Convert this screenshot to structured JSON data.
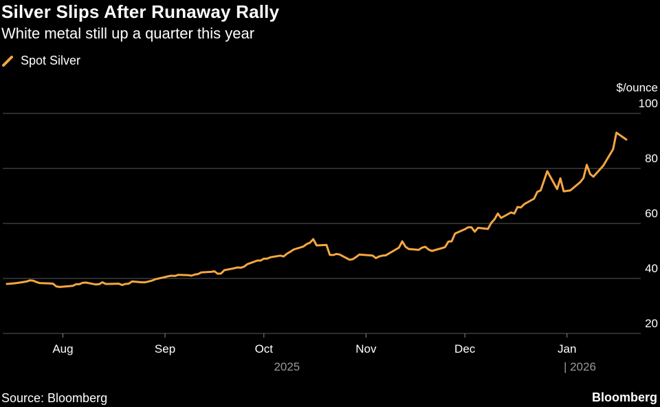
{
  "header": {
    "title": "Silver Slips After Runaway Rally",
    "subtitle": "White metal still up a quarter this year"
  },
  "footer": {
    "source": "Source: Bloomberg",
    "brand": "Bloomberg"
  },
  "colors": {
    "background": "#000000",
    "line": "#f5a742",
    "grid": "#5a5a5a",
    "text": "#ffffff",
    "muted": "#9a9a9a"
  },
  "chart_data": {
    "type": "line",
    "title": "Silver Slips After Runaway Rally",
    "subtitle": "White metal still up a quarter this year",
    "ylabel": "$/ounce",
    "xlabel": "",
    "ylim": [
      20,
      100
    ],
    "yticks": [
      20,
      40,
      60,
      80,
      100
    ],
    "xlim": [
      "2025-07-15",
      "2026-01-23"
    ],
    "xticks": [
      {
        "label": "Aug",
        "date": "2025-08-01"
      },
      {
        "label": "Sep",
        "date": "2025-09-01"
      },
      {
        "label": "Oct",
        "date": "2025-10-01"
      },
      {
        "label": "Nov",
        "date": "2025-11-01"
      },
      {
        "label": "Dec",
        "date": "2025-12-01"
      },
      {
        "label": "Jan",
        "date": "2026-01-01"
      }
    ],
    "year_labels": [
      {
        "label": "2025",
        "date": "2025-10-08"
      },
      {
        "label": "| 2026",
        "date": "2026-01-12"
      }
    ],
    "grid": true,
    "legend": {
      "position": "top-left"
    },
    "series": [
      {
        "name": "Spot Silver",
        "color": "#f5a742",
        "points": [
          [
            "2025-07-15",
            38.0
          ],
          [
            "2025-07-17",
            38.2
          ],
          [
            "2025-07-19",
            38.5
          ],
          [
            "2025-07-21",
            38.9
          ],
          [
            "2025-07-22",
            39.3
          ],
          [
            "2025-07-23",
            39.2
          ],
          [
            "2025-07-24",
            38.7
          ],
          [
            "2025-07-25",
            38.3
          ],
          [
            "2025-07-28",
            38.2
          ],
          [
            "2025-07-29",
            38.1
          ],
          [
            "2025-07-30",
            37.1
          ],
          [
            "2025-07-31",
            36.9
          ],
          [
            "2025-08-01",
            37.0
          ],
          [
            "2025-08-04",
            37.3
          ],
          [
            "2025-08-05",
            37.9
          ],
          [
            "2025-08-06",
            37.9
          ],
          [
            "2025-08-07",
            38.4
          ],
          [
            "2025-08-08",
            38.5
          ],
          [
            "2025-08-11",
            37.8
          ],
          [
            "2025-08-12",
            37.9
          ],
          [
            "2025-08-13",
            38.6
          ],
          [
            "2025-08-14",
            38.0
          ],
          [
            "2025-08-15",
            38.0
          ],
          [
            "2025-08-18",
            38.1
          ],
          [
            "2025-08-19",
            37.6
          ],
          [
            "2025-08-20",
            38.0
          ],
          [
            "2025-08-21",
            38.1
          ],
          [
            "2025-08-22",
            38.9
          ],
          [
            "2025-08-25",
            38.6
          ],
          [
            "2025-08-26",
            38.6
          ],
          [
            "2025-08-27",
            38.9
          ],
          [
            "2025-08-28",
            39.2
          ],
          [
            "2025-08-29",
            39.7
          ],
          [
            "2025-09-01",
            40.5
          ],
          [
            "2025-09-02",
            40.8
          ],
          [
            "2025-09-03",
            41.0
          ],
          [
            "2025-09-04",
            40.9
          ],
          [
            "2025-09-05",
            41.3
          ],
          [
            "2025-09-08",
            41.2
          ],
          [
            "2025-09-09",
            41.0
          ],
          [
            "2025-09-10",
            41.4
          ],
          [
            "2025-09-11",
            41.6
          ],
          [
            "2025-09-12",
            42.2
          ],
          [
            "2025-09-15",
            42.4
          ],
          [
            "2025-09-16",
            42.6
          ],
          [
            "2025-09-17",
            41.7
          ],
          [
            "2025-09-18",
            41.8
          ],
          [
            "2025-09-19",
            43.0
          ],
          [
            "2025-09-22",
            43.7
          ],
          [
            "2025-09-23",
            44.0
          ],
          [
            "2025-09-24",
            43.9
          ],
          [
            "2025-09-25",
            44.3
          ],
          [
            "2025-09-26",
            45.2
          ],
          [
            "2025-09-29",
            46.5
          ],
          [
            "2025-09-30",
            46.5
          ],
          [
            "2025-10-01",
            47.2
          ],
          [
            "2025-10-02",
            47.2
          ],
          [
            "2025-10-03",
            47.7
          ],
          [
            "2025-10-06",
            48.3
          ],
          [
            "2025-10-07",
            48.0
          ],
          [
            "2025-10-08",
            49.0
          ],
          [
            "2025-10-09",
            49.7
          ],
          [
            "2025-10-10",
            50.5
          ],
          [
            "2025-10-13",
            51.6
          ],
          [
            "2025-10-14",
            52.5
          ],
          [
            "2025-10-15",
            53.0
          ],
          [
            "2025-10-16",
            54.3
          ],
          [
            "2025-10-17",
            52.0
          ],
          [
            "2025-10-20",
            52.2
          ],
          [
            "2025-10-21",
            48.6
          ],
          [
            "2025-10-22",
            48.5
          ],
          [
            "2025-10-23",
            48.9
          ],
          [
            "2025-10-24",
            48.7
          ],
          [
            "2025-10-27",
            46.8
          ],
          [
            "2025-10-28",
            47.0
          ],
          [
            "2025-10-29",
            47.8
          ],
          [
            "2025-10-30",
            48.7
          ],
          [
            "2025-11-03",
            48.3
          ],
          [
            "2025-11-04",
            47.4
          ],
          [
            "2025-11-05",
            48.0
          ],
          [
            "2025-11-06",
            48.3
          ],
          [
            "2025-11-07",
            48.4
          ],
          [
            "2025-11-10",
            50.5
          ],
          [
            "2025-11-11",
            51.2
          ],
          [
            "2025-11-12",
            53.5
          ],
          [
            "2025-11-13",
            51.5
          ],
          [
            "2025-11-14",
            50.7
          ],
          [
            "2025-11-17",
            50.4
          ],
          [
            "2025-11-18",
            51.2
          ],
          [
            "2025-11-19",
            51.5
          ],
          [
            "2025-11-20",
            50.5
          ],
          [
            "2025-11-21",
            50.0
          ],
          [
            "2025-11-24",
            51.0
          ],
          [
            "2025-11-25",
            51.4
          ],
          [
            "2025-11-26",
            53.4
          ],
          [
            "2025-11-27",
            53.5
          ],
          [
            "2025-11-28",
            56.3
          ],
          [
            "2025-12-01",
            57.9
          ],
          [
            "2025-12-02",
            58.6
          ],
          [
            "2025-12-03",
            58.6
          ],
          [
            "2025-12-04",
            57.0
          ],
          [
            "2025-12-05",
            58.4
          ],
          [
            "2025-12-08",
            58.0
          ],
          [
            "2025-12-09",
            60.2
          ],
          [
            "2025-12-10",
            61.5
          ],
          [
            "2025-12-11",
            63.6
          ],
          [
            "2025-12-12",
            62.0
          ],
          [
            "2025-12-15",
            64.0
          ],
          [
            "2025-12-16",
            63.6
          ],
          [
            "2025-12-17",
            66.0
          ],
          [
            "2025-12-18",
            65.8
          ],
          [
            "2025-12-19",
            67.0
          ],
          [
            "2025-12-22",
            69.0
          ],
          [
            "2025-12-23",
            71.5
          ],
          [
            "2025-12-24",
            72.0
          ],
          [
            "2025-12-26",
            79.0
          ],
          [
            "2025-12-29",
            72.5
          ],
          [
            "2025-12-30",
            76.4
          ],
          [
            "2025-12-31",
            71.7
          ],
          [
            "2026-01-02",
            72.0
          ],
          [
            "2026-01-05",
            75.0
          ],
          [
            "2026-01-06",
            76.5
          ],
          [
            "2026-01-07",
            81.3
          ],
          [
            "2026-01-08",
            78.0
          ],
          [
            "2026-01-09",
            77.0
          ],
          [
            "2026-01-12",
            81.0
          ],
          [
            "2026-01-13",
            83.0
          ],
          [
            "2026-01-14",
            85.0
          ],
          [
            "2026-01-15",
            87.0
          ],
          [
            "2026-01-16",
            93.0
          ],
          [
            "2026-01-19",
            90.5
          ]
        ]
      }
    ]
  }
}
